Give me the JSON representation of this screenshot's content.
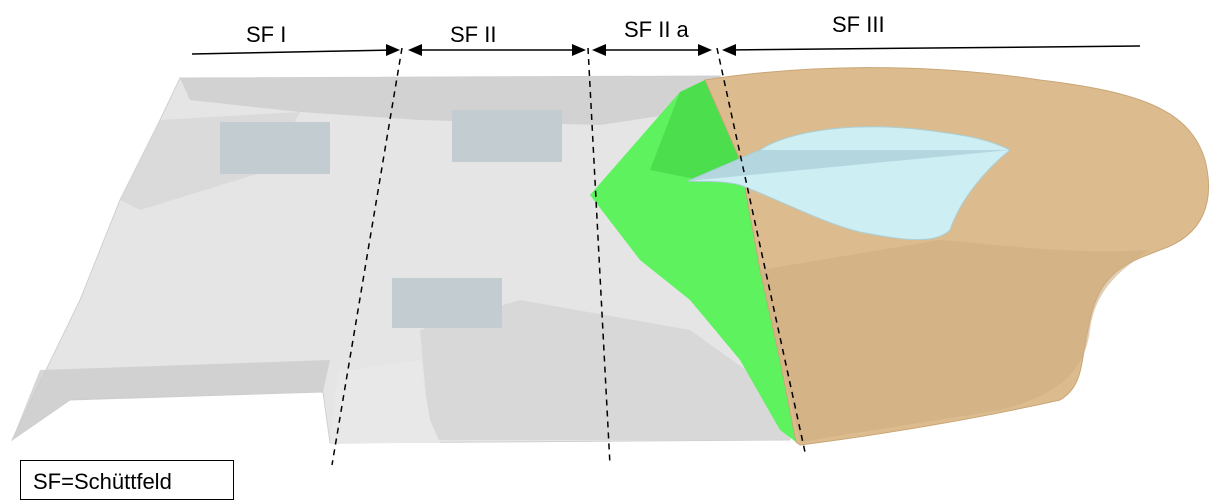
{
  "sections": [
    {
      "id": "sf1",
      "label": "SF I"
    },
    {
      "id": "sf2",
      "label": "SF II"
    },
    {
      "id": "sf2a",
      "label": "SF II a"
    },
    {
      "id": "sf3",
      "label": "SF III"
    }
  ],
  "legend": {
    "text": "SF=Schüttfeld"
  },
  "colors": {
    "fill_grey": "#e3e3e3",
    "fill_grey_dark": "#c9c9c9",
    "building": "#c3ccd1",
    "green": "#5ef25e",
    "sand": "#d9b98c",
    "water": "#cdeef3",
    "line": "#000000"
  },
  "icons": [
    "arrow-left-icon",
    "arrow-right-icon"
  ]
}
